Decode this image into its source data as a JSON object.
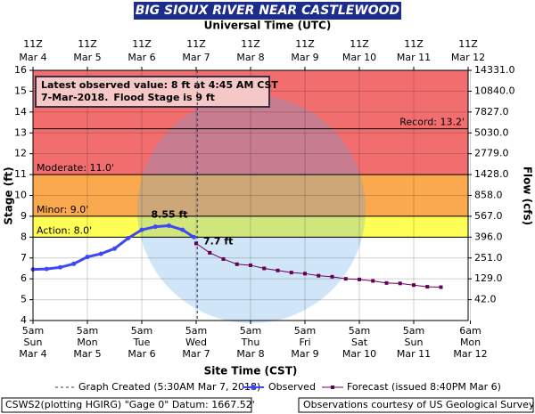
{
  "chart_data": {
    "type": "hydrograph",
    "title": "BIG SIOUX RIVER NEAR CASTLEWOOD",
    "top_axis_label": "Universal Time (UTC)",
    "x_label": "Site Time (CST)",
    "y_label": "Stage (ft)",
    "y2_label": "Flow (cfs)",
    "ylim": [
      4,
      16
    ],
    "yticks": [
      4,
      5,
      6,
      7,
      8,
      9,
      10,
      11,
      12,
      13,
      14,
      15,
      16
    ],
    "y2ticks": [
      {
        "value": 14331,
        "label": "14331.0",
        "stage": 16
      },
      {
        "value": 10840,
        "label": "10840.0",
        "stage": 15
      },
      {
        "value": 7827,
        "label": "7827.0",
        "stage": 14
      },
      {
        "value": 5030,
        "label": "5030.0",
        "stage": 13
      },
      {
        "value": 2779,
        "label": "2779.0",
        "stage": 12
      },
      {
        "value": 1428,
        "label": "1428.0",
        "stage": 11
      },
      {
        "value": 858,
        "label": "858.0",
        "stage": 10
      },
      {
        "value": 567,
        "label": "567.0",
        "stage": 9
      },
      {
        "value": 396,
        "label": "396.0",
        "stage": 8
      },
      {
        "value": 251,
        "label": "251.0",
        "stage": 7
      },
      {
        "value": 129,
        "label": "129.0",
        "stage": 6
      },
      {
        "value": 42,
        "label": "42.0",
        "stage": 5
      }
    ],
    "xticks": [
      {
        "time": "5am",
        "day": "Sun",
        "date": "Mar 4"
      },
      {
        "time": "5am",
        "day": "Mon",
        "date": "Mar 5"
      },
      {
        "time": "5am",
        "day": "Tue",
        "date": "Mar 6"
      },
      {
        "time": "5am",
        "day": "Wed",
        "date": "Mar 7"
      },
      {
        "time": "5am",
        "day": "Thu",
        "date": "Mar 8"
      },
      {
        "time": "5am",
        "day": "Fri",
        "date": "Mar 9"
      },
      {
        "time": "5am",
        "day": "Sat",
        "date": "Mar 10"
      },
      {
        "time": "5am",
        "day": "Sun",
        "date": "Mar 11"
      },
      {
        "time": "6am",
        "day": "Mon",
        "date": "Mar 12"
      }
    ],
    "top_ticks": [
      {
        "time": "11Z",
        "date": "Mar 4"
      },
      {
        "time": "11Z",
        "date": "Mar 5"
      },
      {
        "time": "11Z",
        "date": "Mar 6"
      },
      {
        "time": "11Z",
        "date": "Mar 7"
      },
      {
        "time": "11Z",
        "date": "Mar 8"
      },
      {
        "time": "11Z",
        "date": "Mar 9"
      },
      {
        "time": "11Z",
        "date": "Mar 10"
      },
      {
        "time": "11Z",
        "date": "Mar 11"
      },
      {
        "time": "11Z",
        "date": "Mar 12"
      }
    ],
    "flood_levels": [
      {
        "label": "Record: 13.2'",
        "value": 13.2
      },
      {
        "label": "Moderate: 11.0'",
        "value": 11.0,
        "color": "#f26e6e"
      },
      {
        "label": "Minor: 9.0'",
        "value": 9.0,
        "color": "#fba94f"
      },
      {
        "label": "Action: 8.0'",
        "value": 8.0,
        "color": "#ffff55"
      }
    ],
    "series": [
      {
        "name": "Observed",
        "color": "#3f48f5",
        "x": [
          "Mar 4 5am",
          "Mar 4 11am",
          "Mar 4 5pm",
          "Mar 4 11pm",
          "Mar 5 5am",
          "Mar 5 11am",
          "Mar 5 5pm",
          "Mar 5 11pm",
          "Mar 6 5am",
          "Mar 6 11am",
          "Mar 6 5pm",
          "Mar 6 11pm",
          "Mar 7 4am"
        ],
        "values": [
          6.45,
          6.47,
          6.55,
          6.72,
          7.05,
          7.2,
          7.45,
          7.95,
          8.35,
          8.5,
          8.55,
          8.35,
          8.0
        ]
      },
      {
        "name": "Forecast (issued 8:40PM Mar 6)",
        "color": "#660055",
        "x": [
          "Mar 7 5am",
          "Mar 7 11am",
          "Mar 7 5pm",
          "Mar 7 11pm",
          "Mar 8 5am",
          "Mar 8 11am",
          "Mar 8 5pm",
          "Mar 8 11pm",
          "Mar 9 5am",
          "Mar 9 11am",
          "Mar 9 5pm",
          "Mar 9 11pm",
          "Mar 10 5am",
          "Mar 10 11am",
          "Mar 10 5pm",
          "Mar 10 11pm",
          "Mar 11 5am",
          "Mar 11 11am",
          "Mar 11 5pm"
        ],
        "values": [
          7.7,
          7.25,
          6.95,
          6.7,
          6.65,
          6.5,
          6.4,
          6.3,
          6.25,
          6.15,
          6.1,
          6.0,
          5.97,
          5.9,
          5.8,
          5.78,
          5.7,
          5.62,
          5.6
        ]
      }
    ],
    "annotations": [
      {
        "text": "8.55 ft",
        "x": "Mar 6 5pm",
        "y": 8.55,
        "color": "#3f48f5"
      },
      {
        "text": "7.7 ft",
        "x": "Mar 7 5am",
        "y": 7.7,
        "color": "#660055"
      }
    ],
    "info": {
      "line1": "Latest observed value: 8 ft at 4:45 AM CST",
      "line2a": "7-Mar-2018.",
      "line2b": "Flood Stage is 9 ft"
    },
    "graph_created": "Graph Created (5:30AM Mar 7, 2018)",
    "footer_left": "CSWS2(plotting HGIRG) \"Gage 0\" Datum: 1667.52'",
    "footer_right": "Observations courtesy of US Geological Survey"
  }
}
